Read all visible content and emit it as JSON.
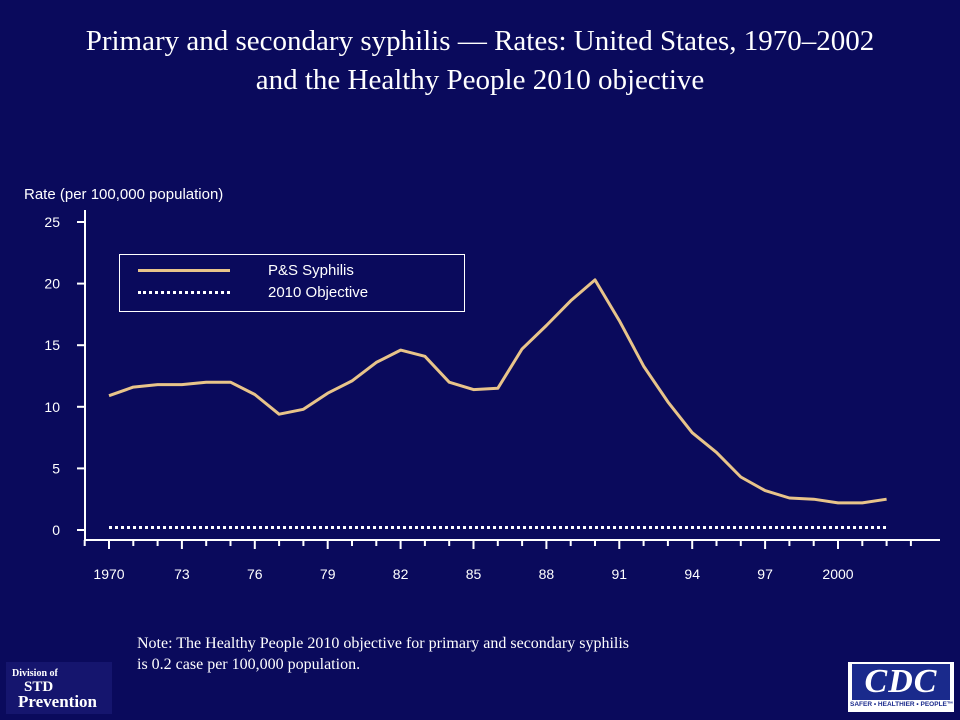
{
  "slide": {
    "title_line1": "Primary and secondary syphilis — Rates: United States, 1970–2002",
    "title_line2": "and the Healthy People 2010 objective",
    "note_line1": "Note: The Healthy People 2010 objective for primary and secondary syphilis",
    "note_line2": "is 0.2 case per 100,000 population.",
    "logo_left": {
      "line1": "Division of",
      "line2": "STD",
      "line3": "Prevention"
    },
    "logo_right": {
      "mark": "CDC",
      "tagline": "SAFER • HEALTHIER • PEOPLE™"
    }
  },
  "colors": {
    "background": "#0a0a5c",
    "series_syphilis": "#e8c48a",
    "series_objective": "#ffffff",
    "axis": "#ffffff",
    "text": "#ffffff"
  },
  "chart_data": {
    "type": "line",
    "ylabel": "Rate (per 100,000 population)",
    "ylim": [
      0,
      25
    ],
    "yticks": [
      0,
      5,
      10,
      15,
      20,
      25
    ],
    "x_range": [
      1969,
      2003
    ],
    "xtick_values": [
      1970,
      1973,
      1976,
      1979,
      1982,
      1985,
      1988,
      1991,
      1994,
      1997,
      2000
    ],
    "xtick_labels": [
      "1970",
      "73",
      "76",
      "79",
      "82",
      "85",
      "88",
      "91",
      "94",
      "97",
      "2000"
    ],
    "grid": false,
    "legend_position": "top-left",
    "series": [
      {
        "name": "P&S Syphilis",
        "style": "solid",
        "x": [
          1970,
          1971,
          1972,
          1973,
          1974,
          1975,
          1976,
          1977,
          1978,
          1979,
          1980,
          1981,
          1982,
          1983,
          1984,
          1985,
          1986,
          1987,
          1988,
          1989,
          1990,
          1991,
          1992,
          1993,
          1994,
          1995,
          1996,
          1997,
          1998,
          1999,
          2000,
          2001,
          2002
        ],
        "values": [
          10.9,
          11.6,
          11.8,
          11.8,
          12.0,
          12.0,
          11.0,
          9.4,
          9.8,
          11.1,
          12.1,
          13.6,
          14.6,
          14.1,
          12.0,
          11.4,
          11.5,
          14.7,
          16.6,
          18.6,
          20.3,
          17.0,
          13.3,
          10.4,
          7.9,
          6.3,
          4.3,
          3.2,
          2.6,
          2.5,
          2.2,
          2.2,
          2.5
        ]
      },
      {
        "name": "2010 Objective",
        "style": "dotted",
        "x": [
          1970,
          2002
        ],
        "values": [
          0.2,
          0.2
        ]
      }
    ]
  }
}
